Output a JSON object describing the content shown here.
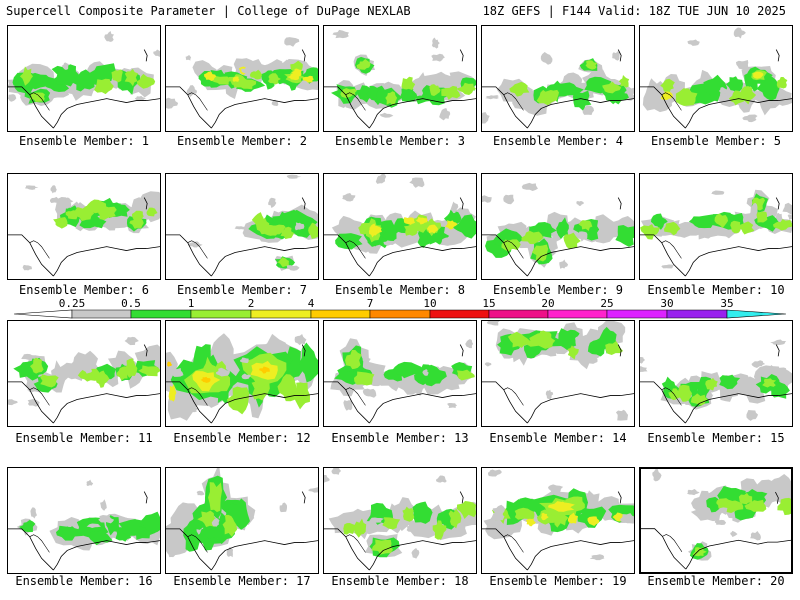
{
  "header": {
    "left": "Supercell Composite Parameter | College of DuPage NEXLAB",
    "right": "18Z GEFS | F144 Valid: 18Z TUE JUN 10 2025"
  },
  "colorbar": {
    "labels": [
      "0.25",
      "0.5",
      "1",
      "2",
      "4",
      "7",
      "10",
      "15",
      "20",
      "25",
      "30",
      "35"
    ],
    "colors": [
      "#c8c8c8",
      "#33dd33",
      "#99ee33",
      "#eeee22",
      "#ffcc00",
      "#ff8800",
      "#ee1111",
      "#ee1188",
      "#ff22cc",
      "#dd22ff",
      "#9922ee",
      "#aa66ee",
      "#33eeee"
    ]
  },
  "members": [
    {
      "label": "Ensemble Member: 1"
    },
    {
      "label": "Ensemble Member: 2"
    },
    {
      "label": "Ensemble Member: 3"
    },
    {
      "label": "Ensemble Member: 4"
    },
    {
      "label": "Ensemble Member: 5"
    },
    {
      "label": "Ensemble Member: 6"
    },
    {
      "label": "Ensemble Member: 7"
    },
    {
      "label": "Ensemble Member: 8"
    },
    {
      "label": "Ensemble Member: 9"
    },
    {
      "label": "Ensemble Member: 10"
    },
    {
      "label": "Ensemble Member: 11"
    },
    {
      "label": "Ensemble Member: 12"
    },
    {
      "label": "Ensemble Member: 13"
    },
    {
      "label": "Ensemble Member: 14"
    },
    {
      "label": "Ensemble Member: 15"
    },
    {
      "label": "Ensemble Member: 16"
    },
    {
      "label": "Ensemble Member: 17"
    },
    {
      "label": "Ensemble Member: 18"
    },
    {
      "label": "Ensemble Member: 19"
    },
    {
      "label": "Ensemble Member: 20"
    }
  ]
}
